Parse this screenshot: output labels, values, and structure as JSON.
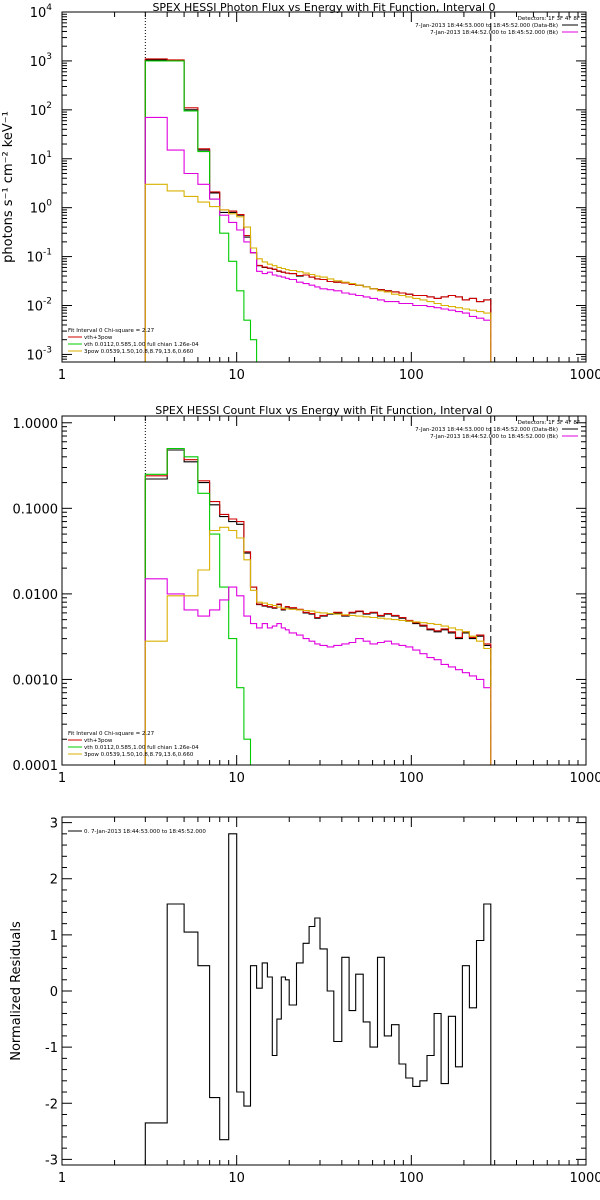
{
  "chart_data": [
    {
      "type": "line",
      "title": "SPEX HESSI Photon Flux vs Energy with Fit Function, Interval 0",
      "xlabel": "",
      "ylabel": "photons s⁻¹ cm⁻² keV⁻¹",
      "xscale": "log",
      "yscale": "log",
      "xlim": [
        1,
        1000
      ],
      "ylim": [
        0.0007,
        10000
      ],
      "x_ticks": [
        "1",
        "10",
        "100",
        "1000"
      ],
      "y_ticks": [
        {
          "v": 0.001,
          "b": "10",
          "e": "-3"
        },
        {
          "v": 0.01,
          "b": "10",
          "e": "-2"
        },
        {
          "v": 0.1,
          "b": "10",
          "e": "-1"
        },
        {
          "v": 1,
          "b": "10",
          "e": "0"
        },
        {
          "v": 10,
          "b": "10",
          "e": "1"
        },
        {
          "v": 100,
          "b": "10",
          "e": "2"
        },
        {
          "v": 1000,
          "b": "10",
          "e": "3"
        },
        {
          "v": 10000,
          "b": "10",
          "e": "4"
        }
      ],
      "vlines": [
        {
          "x": 3,
          "style": "dotted"
        },
        {
          "x": 285,
          "style": "dashed"
        }
      ],
      "legend_top": {
        "line1": "Detectors: 1F 3F 4F 8F",
        "line2": "7-Jan-2013 18:44:53.000 to 18:45:52.000 (Data-Bk)",
        "line3": "7-Jan-2013 18:44:52.000 to 18:45:52.000 (Bk)"
      },
      "legend_bottom": {
        "line1": "Fit Interval 0   Chi-square = 2.27",
        "line2": "vth+3pow",
        "line3": "vth 0.0112,0.585,1.00  full chian 1.26e-04",
        "line4": "3pow 0.0539,1.50,10.8,8.79,13.6,0.660"
      },
      "edges": [
        3,
        4,
        5,
        6,
        7,
        8,
        9,
        10,
        11,
        12,
        13,
        14,
        15,
        16,
        17,
        18,
        19,
        20,
        22,
        24,
        26,
        28,
        30,
        33,
        36,
        40,
        44,
        48,
        53,
        58,
        64,
        70,
        77,
        85,
        93,
        102,
        112,
        123,
        135,
        148,
        163,
        179,
        196,
        215,
        236,
        260,
        285
      ],
      "series": [
        {
          "name": "",
          "color": "#000000",
          "values": [
            1050,
            1000,
            100,
            15,
            2,
            0.8,
            0.8,
            0.7,
            0.25,
            0.12,
            0.065,
            0.06,
            0.058,
            0.055,
            0.05,
            0.048,
            0.046,
            0.045,
            0.04,
            0.042,
            0.038,
            0.035,
            0.034,
            0.031,
            0.03,
            0.029,
            0.027,
            0.026,
            0.024,
            0.022,
            0.021,
            0.02,
            0.019,
            0.018,
            0.017,
            0.016,
            0.016,
            0.015,
            0.014,
            0.015,
            0.016,
            0.015,
            0.013,
            0.014,
            0.012,
            0.013
          ]
        },
        {
          "name": "",
          "color": "#d00000",
          "values": [
            1100,
            1050,
            110,
            16,
            2.1,
            0.9,
            0.85,
            0.72,
            0.27,
            0.12,
            0.066,
            0.061,
            0.058,
            0.055,
            0.051,
            0.048,
            0.046,
            0.045,
            0.041,
            0.042,
            0.038,
            0.035,
            0.034,
            0.031,
            0.03,
            0.029,
            0.027,
            0.026,
            0.024,
            0.022,
            0.021,
            0.02,
            0.019,
            0.018,
            0.017,
            0.016,
            0.016,
            0.015,
            0.014,
            0.015,
            0.016,
            0.015,
            0.013,
            0.014,
            0.012,
            0.013
          ]
        },
        {
          "name": "",
          "color": "#00cc00",
          "values": [
            1000,
            1000,
            95,
            14,
            1.5,
            0.3,
            0.08,
            0.02,
            0.005,
            0.002,
            0.0005
          ]
        },
        {
          "name": "",
          "color": "#e000e0",
          "values": [
            70,
            15,
            5,
            3,
            1.5,
            0.7,
            0.5,
            0.35,
            0.2,
            0.12,
            0.05,
            0.045,
            0.048,
            0.042,
            0.04,
            0.038,
            0.036,
            0.034,
            0.03,
            0.028,
            0.026,
            0.024,
            0.022,
            0.021,
            0.02,
            0.018,
            0.017,
            0.016,
            0.015,
            0.014,
            0.013,
            0.012,
            0.012,
            0.011,
            0.011,
            0.01,
            0.01,
            0.0095,
            0.009,
            0.0085,
            0.008,
            0.0075,
            0.007,
            0.006,
            0.0055,
            0.005
          ]
        },
        {
          "name": "",
          "color": "#d8b000",
          "values": [
            3,
            2.2,
            1.7,
            1.3,
            1.05,
            0.9,
            0.75,
            0.65,
            0.4,
            0.15,
            0.09,
            0.078,
            0.07,
            0.065,
            0.06,
            0.057,
            0.054,
            0.052,
            0.049,
            0.046,
            0.043,
            0.04,
            0.038,
            0.035,
            0.032,
            0.03,
            0.028,
            0.026,
            0.024,
            0.022,
            0.02,
            0.019,
            0.017,
            0.016,
            0.015,
            0.014,
            0.013,
            0.012,
            0.011,
            0.01,
            0.0095,
            0.009,
            0.0085,
            0.008,
            0.0075,
            0.007
          ]
        }
      ]
    },
    {
      "type": "line",
      "title": "SPEX HESSI Count Flux vs Energy with Fit Function, Interval 0",
      "xlabel": "",
      "ylabel": "",
      "xscale": "log",
      "yscale": "log",
      "xlim": [
        1,
        1000
      ],
      "ylim": [
        0.0001,
        1.2
      ],
      "x_ticks": [
        "1",
        "10",
        "100",
        "1000"
      ],
      "y_ticks": [
        {
          "v": 0.0001,
          "t": "0.0001"
        },
        {
          "v": 0.001,
          "t": "0.0010"
        },
        {
          "v": 0.01,
          "t": "0.0100"
        },
        {
          "v": 0.1,
          "t": "0.1000"
        },
        {
          "v": 1,
          "t": "1.0000"
        }
      ],
      "vlines": [
        {
          "x": 3,
          "style": "dotted"
        },
        {
          "x": 285,
          "style": "dashed"
        }
      ],
      "legend_top": {
        "line1": "Detectors: 1F 3F 4F 8F",
        "line2": "7-Jan-2013 18:44:53.000 to 18:45:52.000 (Data-Bk)",
        "line3": "7-Jan-2013 18:44:52.000 to 18:45:52.000 (Bk)"
      },
      "legend_bottom": {
        "line1": "Fit Interval 0   Chi-square = 2.27",
        "line2": "vth+3pow",
        "line3": "vth 0.0112,0.585,1.00  full chian 1.26e-04",
        "line4": "3pow 0.0539,1.50,10.8,8.79,13.6,0.660"
      },
      "edges": [
        3,
        4,
        5,
        6,
        7,
        8,
        9,
        10,
        11,
        12,
        13,
        14,
        15,
        16,
        17,
        18,
        19,
        20,
        22,
        24,
        26,
        28,
        30,
        33,
        36,
        40,
        44,
        48,
        53,
        58,
        64,
        70,
        77,
        85,
        93,
        102,
        112,
        123,
        135,
        148,
        163,
        179,
        196,
        215,
        236,
        260,
        285
      ],
      "series": [
        {
          "name": "",
          "color": "#000000",
          "values": [
            0.22,
            0.48,
            0.35,
            0.2,
            0.11,
            0.08,
            0.07,
            0.065,
            0.03,
            0.012,
            0.0075,
            0.0072,
            0.007,
            0.0068,
            0.0075,
            0.0065,
            0.007,
            0.0068,
            0.0065,
            0.006,
            0.0058,
            0.0052,
            0.0055,
            0.0058,
            0.006,
            0.0055,
            0.006,
            0.0062,
            0.0058,
            0.006,
            0.0055,
            0.0058,
            0.0055,
            0.0052,
            0.0048,
            0.0045,
            0.0042,
            0.0038,
            0.0036,
            0.0038,
            0.0035,
            0.003,
            0.0035,
            0.003,
            0.0032,
            0.0025
          ]
        },
        {
          "name": "",
          "color": "#d00000",
          "values": [
            0.24,
            0.5,
            0.37,
            0.21,
            0.12,
            0.085,
            0.075,
            0.07,
            0.031,
            0.012,
            0.0076,
            0.0073,
            0.0071,
            0.0069,
            0.0076,
            0.0066,
            0.0071,
            0.0069,
            0.0066,
            0.0061,
            0.0059,
            0.0053,
            0.0056,
            0.0059,
            0.0061,
            0.0056,
            0.0061,
            0.0063,
            0.0059,
            0.0061,
            0.0056,
            0.0059,
            0.0056,
            0.0053,
            0.0049,
            0.0046,
            0.0043,
            0.0039,
            0.0037,
            0.0039,
            0.0036,
            0.0031,
            0.0036,
            0.0031,
            0.0033,
            0.0026
          ]
        },
        {
          "name": "",
          "color": "#00cc00",
          "values": [
            0.25,
            0.5,
            0.4,
            0.15,
            0.05,
            0.012,
            0.003,
            0.0008,
            0.0002,
            5e-05
          ]
        },
        {
          "name": "",
          "color": "#e000e0",
          "values": [
            0.015,
            0.01,
            0.0065,
            0.0055,
            0.0065,
            0.0085,
            0.012,
            0.0095,
            0.0055,
            0.0045,
            0.004,
            0.0045,
            0.004,
            0.0042,
            0.0045,
            0.004,
            0.0038,
            0.0035,
            0.0033,
            0.003,
            0.0028,
            0.0026,
            0.0025,
            0.0024,
            0.0025,
            0.0026,
            0.0027,
            0.003,
            0.0028,
            0.0026,
            0.0027,
            0.0028,
            0.0026,
            0.0025,
            0.0024,
            0.0022,
            0.002,
            0.0018,
            0.0017,
            0.0015,
            0.0014,
            0.0013,
            0.0012,
            0.0011,
            0.001,
            0.0008
          ]
        },
        {
          "name": "",
          "color": "#d8b000",
          "values": [
            0.0028,
            0.0095,
            0.0095,
            0.019,
            0.055,
            0.06,
            0.055,
            0.045,
            0.025,
            0.011,
            0.008,
            0.0078,
            0.0075,
            0.0073,
            0.007,
            0.0068,
            0.0067,
            0.0066,
            0.0065,
            0.0064,
            0.0063,
            0.0061,
            0.006,
            0.0059,
            0.0058,
            0.0057,
            0.0056,
            0.0055,
            0.0054,
            0.0053,
            0.0052,
            0.0051,
            0.005,
            0.0049,
            0.0048,
            0.0047,
            0.0046,
            0.0045,
            0.0044,
            0.0042,
            0.004,
            0.0038,
            0.0036,
            0.0032,
            0.0028,
            0.0023
          ]
        }
      ]
    },
    {
      "type": "line",
      "title": "",
      "xlabel": "",
      "ylabel": "Normalized Residuals",
      "xscale": "log",
      "yscale": "linear",
      "xlim": [
        1,
        1000
      ],
      "ylim": [
        -3.1,
        3.1
      ],
      "x_ticks": [
        "1",
        "10",
        "100",
        "1000"
      ],
      "y_ticks": [
        {
          "v": -3,
          "t": "-3"
        },
        {
          "v": -2,
          "t": "-2"
        },
        {
          "v": -1,
          "t": "-1"
        },
        {
          "v": 0,
          "t": "0"
        },
        {
          "v": 1,
          "t": "1"
        },
        {
          "v": 2,
          "t": "2"
        },
        {
          "v": 3,
          "t": "3"
        }
      ],
      "legend_top": {
        "line1": "0.  7-Jan-2013 18:44:53.000 to 18:45:52.000"
      },
      "edges": [
        3,
        4,
        5,
        6,
        7,
        8,
        9,
        10,
        11,
        12,
        13,
        14,
        15,
        16,
        17,
        18,
        19,
        20,
        22,
        24,
        26,
        28,
        30,
        33,
        36,
        40,
        44,
        48,
        53,
        58,
        64,
        70,
        77,
        85,
        93,
        102,
        112,
        123,
        135,
        148,
        163,
        179,
        196,
        215,
        236,
        260,
        285
      ],
      "series": [
        {
          "name": "",
          "color": "#000000",
          "values": [
            -2.35,
            1.55,
            1.05,
            0.45,
            -1.9,
            -2.65,
            2.8,
            -1.8,
            -2.05,
            0.45,
            0.05,
            0.5,
            0.25,
            -1.15,
            -0.5,
            0.25,
            0.2,
            -0.25,
            0.5,
            0.85,
            1.15,
            1.3,
            0.75,
            0.0,
            -0.9,
            0.6,
            -0.35,
            0.3,
            -0.55,
            -1.0,
            0.6,
            -0.8,
            -0.6,
            -1.3,
            -1.55,
            -1.7,
            -1.6,
            -1.15,
            -0.4,
            -1.65,
            -0.45,
            -1.35,
            0.45,
            -0.3,
            0.9,
            1.55
          ]
        }
      ]
    }
  ]
}
